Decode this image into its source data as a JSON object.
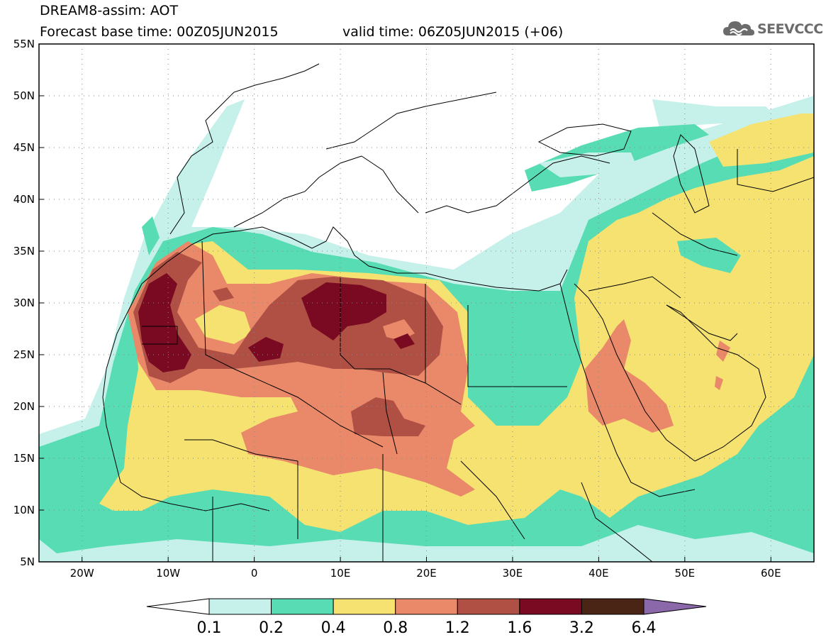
{
  "header": {
    "title": "DREAM8-assim: AOT",
    "base_time": "Forecast base time: 00Z05JUN2015",
    "valid_time": "valid time: 06Z05JUN2015 (+06)"
  },
  "logo": {
    "text": "SEEVCCC",
    "icon": "cloud-icon",
    "color": "#6b6b6b"
  },
  "map": {
    "lon_range": [
      -25,
      65
    ],
    "lat_range": [
      5,
      55
    ],
    "lon_ticks": [
      {
        "value": -20,
        "label": "20W"
      },
      {
        "value": -10,
        "label": "10W"
      },
      {
        "value": 0,
        "label": "0"
      },
      {
        "value": 10,
        "label": "10E"
      },
      {
        "value": 20,
        "label": "20E"
      },
      {
        "value": 30,
        "label": "30E"
      },
      {
        "value": 40,
        "label": "40E"
      },
      {
        "value": 50,
        "label": "50E"
      },
      {
        "value": 60,
        "label": "60E"
      }
    ],
    "lat_ticks": [
      {
        "value": 55,
        "label": "55N"
      },
      {
        "value": 50,
        "label": "50N"
      },
      {
        "value": 45,
        "label": "45N"
      },
      {
        "value": 40,
        "label": "40N"
      },
      {
        "value": 35,
        "label": "35N"
      },
      {
        "value": 30,
        "label": "30N"
      },
      {
        "value": 25,
        "label": "25N"
      },
      {
        "value": 20,
        "label": "20N"
      },
      {
        "value": 15,
        "label": "15N"
      },
      {
        "value": 10,
        "label": "10N"
      },
      {
        "value": 5,
        "label": "5N"
      }
    ],
    "grid": true
  },
  "colorbar": {
    "colors": [
      "#ffffff",
      "#c6f0ea",
      "#58dcb3",
      "#f5e271",
      "#e9896a",
      "#b05044",
      "#7a0a22",
      "#4a2414",
      "#8a68aa"
    ],
    "labels": [
      "0.1",
      "0.2",
      "0.4",
      "0.8",
      "1.2",
      "1.6",
      "3.2",
      "6.4"
    ]
  }
}
